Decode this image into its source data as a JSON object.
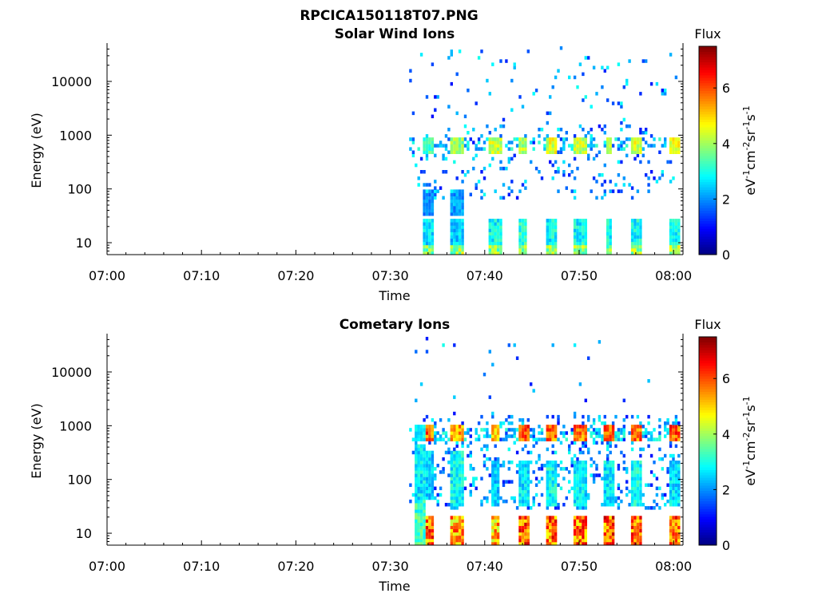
{
  "figure": {
    "title": "RPCICA150118T07.PNG"
  },
  "colormap": [
    "#00007f",
    "#0000ff",
    "#007fff",
    "#00ffff",
    "#7fff7f",
    "#ffff00",
    "#ff7f00",
    "#ff0000",
    "#7f0000"
  ],
  "chart_data": [
    {
      "type": "heatmap",
      "title": "Solar Wind Ions",
      "xlabel": "Time",
      "ylabel": "Energy (eV)",
      "x_scale": "time",
      "x_range": [
        "07:00",
        "08:01"
      ],
      "x_ticks": [
        "07:00",
        "07:10",
        "07:20",
        "07:30",
        "07:40",
        "07:50",
        "08:00"
      ],
      "y_scale": "log",
      "y_range": [
        6,
        45000
      ],
      "y_ticks": [
        10,
        100,
        1000,
        10000
      ],
      "y_tick_labels": [
        "10",
        "100",
        "1000",
        "10000"
      ],
      "colorbar": {
        "label": "Flux",
        "units": "eV-1cm-2sr-1s-1",
        "range": [
          0,
          7.5
        ],
        "ticks": [
          0,
          2,
          4,
          6
        ],
        "tick_labels": [
          "0",
          "2",
          "4",
          "6"
        ]
      },
      "data_start": "07:32",
      "bursts": [
        {
          "t": "07:34",
          "width_min": 1.2,
          "bands": [
            [
              30,
              90,
              2.0
            ],
            [
              9,
              25,
              2.8
            ],
            [
              6,
              9,
              4.0
            ]
          ],
          "dominant_energy": 650,
          "peak_flux": 3.6
        },
        {
          "t": "07:37",
          "width_min": 1.4,
          "bands": [
            [
              30,
              90,
              2.2
            ],
            [
              9,
              25,
              2.6
            ],
            [
              6,
              9,
              4.2
            ]
          ],
          "dominant_energy": 650,
          "peak_flux": 4.2
        },
        {
          "t": "07:41",
          "width_min": 1.2,
          "bands": [
            [
              9,
              25,
              3.0
            ],
            [
              6,
              9,
              4.0
            ]
          ],
          "dominant_energy": 650,
          "peak_flux": 4.6
        },
        {
          "t": "07:44",
          "width_min": 0.8,
          "bands": [
            [
              9,
              25,
              3.2
            ],
            [
              6,
              9,
              4.0
            ]
          ],
          "dominant_energy": 650,
          "peak_flux": 4.4
        },
        {
          "t": "07:47",
          "width_min": 1.2,
          "bands": [
            [
              9,
              25,
              3.0
            ],
            [
              6,
              9,
              4.2
            ]
          ],
          "dominant_energy": 650,
          "peak_flux": 4.8
        },
        {
          "t": "07:50",
          "width_min": 1.2,
          "bands": [
            [
              9,
              25,
              3.0
            ],
            [
              6,
              9,
              4.2
            ]
          ],
          "dominant_energy": 650,
          "peak_flux": 4.6
        },
        {
          "t": "07:53",
          "width_min": 0.8,
          "bands": [
            [
              9,
              25,
              3.0
            ],
            [
              6,
              9,
              4.0
            ]
          ],
          "dominant_energy": 650,
          "peak_flux": 4.4
        },
        {
          "t": "07:56",
          "width_min": 1.2,
          "bands": [
            [
              9,
              25,
              3.0
            ],
            [
              6,
              9,
              4.2
            ]
          ],
          "dominant_energy": 650,
          "peak_flux": 4.8
        },
        {
          "t": "08:00",
          "width_min": 1.2,
          "bands": [
            [
              9,
              25,
              3.0
            ],
            [
              6,
              9,
              4.2
            ]
          ],
          "dominant_energy": 650,
          "peak_flux": 4.8
        }
      ]
    },
    {
      "type": "heatmap",
      "title": "Cometary Ions",
      "xlabel": "Time",
      "ylabel": "Energy (eV)",
      "x_scale": "time",
      "x_range": [
        "07:00",
        "08:01"
      ],
      "x_ticks": [
        "07:00",
        "07:10",
        "07:20",
        "07:30",
        "07:40",
        "07:50",
        "08:00"
      ],
      "y_scale": "log",
      "y_range": [
        6,
        45000
      ],
      "y_ticks": [
        10,
        100,
        1000,
        10000
      ],
      "y_tick_labels": [
        "10",
        "100",
        "1000",
        "10000"
      ],
      "colorbar": {
        "label": "Flux",
        "units": "eV-1cm-2sr-1s-1",
        "range": [
          0,
          7.5
        ],
        "ticks": [
          0,
          2,
          4,
          6
        ],
        "tick_labels": [
          "0",
          "2",
          "4",
          "6"
        ]
      },
      "data_start": "07:32",
      "bursts": [
        {
          "t": "07:33",
          "width_min": 1.0,
          "bands": [
            [
              40,
              400,
              2.8
            ],
            [
              6,
              40,
              3.4
            ]
          ],
          "dominant_energy": 700,
          "peak_flux": 3.0
        },
        {
          "t": "07:34",
          "width_min": 1.2,
          "bands": [
            [
              40,
              300,
              2.6
            ],
            [
              6,
              20,
              6.0
            ]
          ],
          "dominant_energy": 700,
          "peak_flux": 6.2
        },
        {
          "t": "07:37",
          "width_min": 1.4,
          "bands": [
            [
              30,
              300,
              3.0
            ],
            [
              6,
              20,
              5.6
            ]
          ],
          "dominant_energy": 700,
          "peak_flux": 5.8
        },
        {
          "t": "07:41",
          "width_min": 1.0,
          "bands": [
            [
              30,
              200,
              2.6
            ],
            [
              6,
              20,
              5.4
            ]
          ],
          "dominant_energy": 700,
          "peak_flux": 5.6
        },
        {
          "t": "07:44",
          "width_min": 1.0,
          "bands": [
            [
              30,
              200,
              2.8
            ],
            [
              6,
              20,
              6.2
            ]
          ],
          "dominant_energy": 700,
          "peak_flux": 6.5
        },
        {
          "t": "07:47",
          "width_min": 1.2,
          "bands": [
            [
              30,
              200,
              3.0
            ],
            [
              6,
              20,
              6.0
            ]
          ],
          "dominant_energy": 700,
          "peak_flux": 6.2
        },
        {
          "t": "07:50",
          "width_min": 1.2,
          "bands": [
            [
              30,
              200,
              2.8
            ],
            [
              6,
              20,
              6.0
            ]
          ],
          "dominant_energy": 700,
          "peak_flux": 6.2
        },
        {
          "t": "07:53",
          "width_min": 1.0,
          "bands": [
            [
              30,
              200,
              2.8
            ],
            [
              6,
              20,
              6.2
            ]
          ],
          "dominant_energy": 700,
          "peak_flux": 6.4
        },
        {
          "t": "07:56",
          "width_min": 1.2,
          "bands": [
            [
              30,
              200,
              3.0
            ],
            [
              6,
              20,
              6.0
            ]
          ],
          "dominant_energy": 700,
          "peak_flux": 6.2
        },
        {
          "t": "08:00",
          "width_min": 1.2,
          "bands": [
            [
              30,
              200,
              2.8
            ],
            [
              6,
              20,
              6.0
            ]
          ],
          "dominant_energy": 700,
          "peak_flux": 6.4
        }
      ]
    }
  ]
}
